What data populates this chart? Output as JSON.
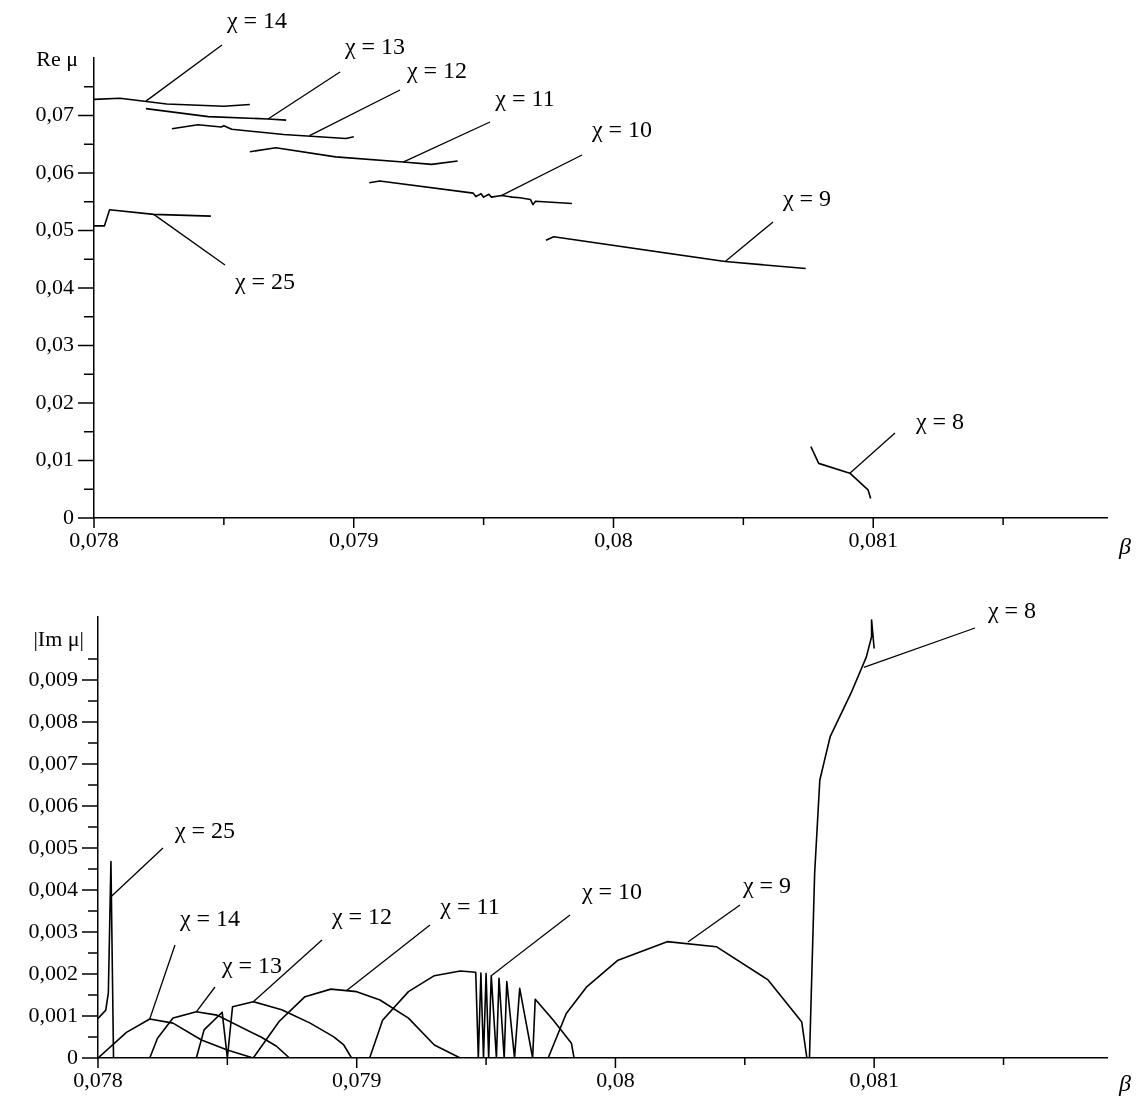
{
  "chart_data": [
    {
      "type": "line",
      "ylabel": "Re μ",
      "xlabel": "β",
      "marker": "none",
      "line_style": "solid",
      "xlim": [
        0.078,
        0.0819
      ],
      "ylim": [
        0,
        0.08
      ],
      "xticks": [
        {
          "value": 0.078,
          "label": "0,078"
        },
        {
          "value": 0.0785,
          "label": null
        },
        {
          "value": 0.079,
          "label": "0,079"
        },
        {
          "value": 0.0795,
          "label": null
        },
        {
          "value": 0.08,
          "label": "0,08"
        },
        {
          "value": 0.0805,
          "label": null
        },
        {
          "value": 0.081,
          "label": "0,081"
        },
        {
          "value": 0.0815,
          "label": null
        }
      ],
      "yticks": [
        0,
        {
          "value": 0.005,
          "label": null
        },
        {
          "value": 0.01,
          "label": "0,01"
        },
        {
          "value": 0.015,
          "label": null
        },
        {
          "value": 0.02,
          "label": "0,02"
        },
        {
          "value": 0.025,
          "label": null
        },
        {
          "value": 0.03,
          "label": "0,03"
        },
        {
          "value": 0.035,
          "label": null
        },
        {
          "value": 0.04,
          "label": "0,04"
        },
        {
          "value": 0.045,
          "label": null
        },
        {
          "value": 0.05,
          "label": "0,05"
        },
        {
          "value": 0.055,
          "label": null
        },
        {
          "value": 0.06,
          "label": "0,06"
        },
        {
          "value": 0.065,
          "label": null
        },
        {
          "value": 0.07,
          "label": "0,07"
        },
        {
          "value": 0.075,
          "label": null
        }
      ],
      "series": [
        {
          "color": "#000000",
          "x": [
            0.078,
            0.07804,
            0.07806,
            0.07823,
            0.07845
          ],
          "values": [
            0.0508,
            0.0508,
            0.0536,
            0.0528,
            0.0525
          ]
        },
        {
          "color": "#000000",
          "x": [
            0.078,
            0.0781,
            0.07828,
            0.0785,
            0.0786
          ],
          "values": [
            0.0728,
            0.073,
            0.072,
            0.0716,
            0.0719
          ]
        },
        {
          "color": "#000000",
          "x": [
            0.0782,
            0.07844,
            0.07867,
            0.07874
          ],
          "values": [
            0.0712,
            0.0698,
            0.0694,
            0.0692
          ]
        },
        {
          "color": "#000000",
          "x": [
            0.0783,
            0.0784,
            0.07849,
            0.0785,
            0.07853,
            0.07873,
            0.07897,
            0.079
          ],
          "values": [
            0.0677,
            0.0684,
            0.068,
            0.0682,
            0.0676,
            0.0667,
            0.066,
            0.0663
          ]
        },
        {
          "color": "#000000",
          "x": [
            0.0786,
            0.0787,
            0.07893,
            0.07919,
            0.0793,
            0.0794
          ],
          "values": [
            0.0637,
            0.0644,
            0.0628,
            0.0619,
            0.0615,
            0.0621
          ]
        },
        {
          "color": "#000000",
          "x": [
            0.07906,
            0.0791,
            0.07946,
            0.07947,
            0.07949,
            0.0795,
            0.07952,
            0.07953,
            0.07957,
            0.07961,
            0.07964,
            0.07968,
            0.07969,
            0.0797,
            0.07984
          ],
          "values": [
            0.0583,
            0.0586,
            0.0565,
            0.0559,
            0.0564,
            0.0558,
            0.0563,
            0.0558,
            0.0561,
            0.0558,
            0.0557,
            0.0554,
            0.0545,
            0.0551,
            0.0547
          ]
        },
        {
          "color": "#000000",
          "x": [
            0.07974,
            0.07977,
            0.08043,
            0.08074
          ],
          "values": [
            0.0483,
            0.0489,
            0.0446,
            0.0434
          ]
        },
        {
          "color": "#000000",
          "x": [
            0.08076,
            0.08079,
            0.08091,
            0.08098,
            0.08099
          ],
          "values": [
            0.0124,
            0.0095,
            0.0078,
            0.0049,
            0.0034
          ]
        }
      ],
      "annotations": [
        {
          "text": "χ = 14",
          "x": 0.0782,
          "y": 0.0725
        },
        {
          "text": "χ = 13",
          "x": 0.07867,
          "y": 0.0694
        },
        {
          "text": "χ = 12",
          "x": 0.07883,
          "y": 0.0665
        },
        {
          "text": "χ = 11",
          "x": 0.07919,
          "y": 0.0619
        },
        {
          "text": "χ = 10",
          "x": 0.07957,
          "y": 0.0561
        },
        {
          "text": "χ = 9",
          "x": 0.08043,
          "y": 0.0446
        },
        {
          "text": "χ = 8",
          "x": 0.08091,
          "y": 0.0078
        },
        {
          "text": "χ = 25",
          "x": 0.07823,
          "y": 0.0528
        }
      ]
    },
    {
      "type": "line",
      "ylabel": "|Im μ|",
      "xlabel": "β",
      "marker": "none",
      "line_style": "solid",
      "xlim": [
        0.078,
        0.0819
      ],
      "ylim": [
        0,
        0.0105
      ],
      "xticks": [
        {
          "value": 0.078,
          "label": "0,078"
        },
        {
          "value": 0.0785,
          "label": null
        },
        {
          "value": 0.079,
          "label": "0,079"
        },
        {
          "value": 0.0795,
          "label": null
        },
        {
          "value": 0.08,
          "label": "0,08"
        },
        {
          "value": 0.0805,
          "label": null
        },
        {
          "value": 0.081,
          "label": "0,081"
        },
        {
          "value": 0.0815,
          "label": null
        }
      ],
      "yticks": [
        0,
        {
          "value": 0.0005,
          "label": null
        },
        {
          "value": 0.001,
          "label": "0,001"
        },
        {
          "value": 0.0015,
          "label": null
        },
        {
          "value": 0.002,
          "label": "0,002"
        },
        {
          "value": 0.0025,
          "label": null
        },
        {
          "value": 0.003,
          "label": "0,003"
        },
        {
          "value": 0.0035,
          "label": null
        },
        {
          "value": 0.004,
          "label": "0,004"
        },
        {
          "value": 0.0045,
          "label": null
        },
        {
          "value": 0.005,
          "label": "0,005"
        },
        {
          "value": 0.0055,
          "label": null
        },
        {
          "value": 0.006,
          "label": "0,006"
        },
        {
          "value": 0.0065,
          "label": null
        },
        {
          "value": 0.007,
          "label": "0,007"
        },
        {
          "value": 0.0075,
          "label": null
        },
        {
          "value": 0.008,
          "label": "0,008"
        },
        {
          "value": 0.0085,
          "label": null
        },
        {
          "value": 0.009,
          "label": "0,009"
        },
        {
          "value": 0.0095,
          "label": null
        }
      ],
      "series": [
        {
          "color": "#000000",
          "x": [
            0.078,
            0.07803,
            0.07804,
            0.07805,
            0.07806
          ],
          "values": [
            0.00094,
            0.00114,
            0.00155,
            0.00468,
            0
          ]
        },
        {
          "color": "#000000",
          "x": [
            0.078,
            0.07811,
            0.0782,
            0.07829,
            0.0784,
            0.0785,
            0.0786
          ],
          "values": [
            0,
            0.00061,
            0.00093,
            0.00083,
            0.00043,
            0.00019,
            0
          ]
        },
        {
          "color": "#000000",
          "x": [
            0.0782,
            0.07823,
            0.07829,
            0.07838,
            0.07846,
            0.07863,
            0.07869,
            0.07874
          ],
          "values": [
            0,
            0.00047,
            0.00095,
            0.0011,
            0.00102,
            0.0005,
            0.00028,
            0
          ]
        },
        {
          "color": "#000000",
          "x": [
            0.07838,
            0.07841,
            0.07848,
            0.0785,
            0.07852,
            0.0786,
            0.07871,
            0.07882,
            0.07891,
            0.07895,
            0.07898
          ],
          "values": [
            0,
            0.00067,
            0.00109,
            0,
            0.00122,
            0.00134,
            0.00115,
            0.00083,
            0.00051,
            0.00031,
            0
          ]
        },
        {
          "color": "#000000",
          "x": [
            0.0786,
            0.0787,
            0.0788,
            0.0789,
            0.079,
            0.07909,
            0.0792,
            0.0793,
            0.0794
          ],
          "values": [
            0,
            0.00087,
            0.00146,
            0.00164,
            0.00158,
            0.00138,
            0.00095,
            0.00031,
            0
          ]
        },
        {
          "color": "#000000",
          "x": [
            0.07905,
            0.0791,
            0.0792,
            0.0793,
            0.0794,
            0.07946,
            0.07947,
            0.07948,
            0.07949,
            0.0795,
            0.07951,
            0.07952,
            0.07954,
            0.07955,
            0.07957,
            0.07958,
            0.07961,
            0.07963,
            0.07968,
            0.07969,
            0.07976,
            0.07983,
            0.07984
          ],
          "values": [
            0,
            0.0009,
            0.00158,
            0.00196,
            0.00207,
            0.00204,
            0,
            0.00202,
            0,
            0.00201,
            0,
            0.00196,
            0,
            0.0019,
            0,
            0.00182,
            0,
            0.00166,
            0,
            0.0014,
            0.0009,
            0.00035,
            0
          ]
        },
        {
          "color": "#000000",
          "x": [
            0.07974,
            0.07981,
            0.07989,
            0.08001,
            0.0802,
            0.08039,
            0.08059,
            0.08072,
            0.08074
          ],
          "values": [
            0,
            0.00106,
            0.0017,
            0.00233,
            0.00277,
            0.00265,
            0.00186,
            0.00086,
            0
          ]
        },
        {
          "color": "#000000",
          "x": [
            0.08075,
            0.08077,
            0.08079,
            0.08083,
            0.08091,
            0.08097,
            0.08099,
            0.08099,
            0.081
          ],
          "values": [
            0,
            0.0044,
            0.00662,
            0.00765,
            0.00868,
            0.00955,
            0.01003,
            0.01043,
            0.00975
          ]
        }
      ],
      "annotations": [
        {
          "text": "χ = 25",
          "x": 0.07805,
          "y": 0.00384
        },
        {
          "text": "χ = 14",
          "x": 0.0782,
          "y": 0.00093
        },
        {
          "text": "χ = 13",
          "x": 0.07838,
          "y": 0.0011
        },
        {
          "text": "χ = 12",
          "x": 0.0786,
          "y": 0.00134
        },
        {
          "text": "χ = 11",
          "x": 0.07896,
          "y": 0.0016
        },
        {
          "text": "χ = 10",
          "x": 0.07952,
          "y": 0.00196
        },
        {
          "text": "χ = 9",
          "x": 0.08028,
          "y": 0.00276
        },
        {
          "text": "χ = 8",
          "x": 0.08096,
          "y": 0.0093
        }
      ]
    }
  ]
}
